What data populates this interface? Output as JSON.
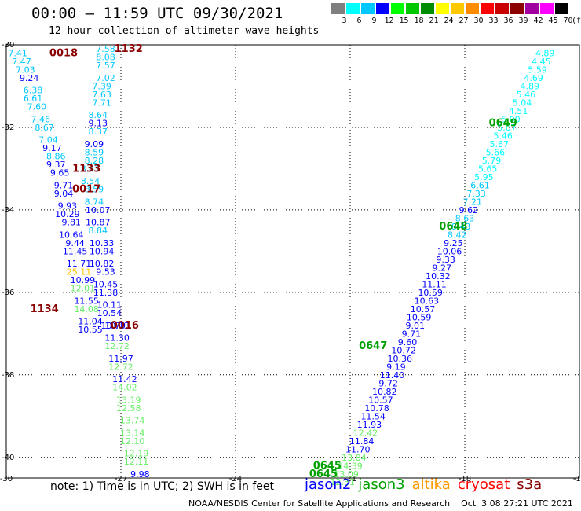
{
  "header": {
    "title": "00:00 – 11:59 UTC 09/30/2021",
    "subtitle": "12 hour collection of altimeter wave heights"
  },
  "color_scale": {
    "unit": "(ft)",
    "steps": [
      {
        "label": "3",
        "color": "#7f7f7f"
      },
      {
        "label": "6",
        "color": "#00ffff"
      },
      {
        "label": "9",
        "color": "#00c8ff"
      },
      {
        "label": "12",
        "color": "#0000ff"
      },
      {
        "label": "15",
        "color": "#00ff00"
      },
      {
        "label": "18",
        "color": "#00c800"
      },
      {
        "label": "21",
        "color": "#008c00"
      },
      {
        "label": "24",
        "color": "#ffff00"
      },
      {
        "label": "27",
        "color": "#ffc800"
      },
      {
        "label": "30",
        "color": "#ff8c00"
      },
      {
        "label": "33",
        "color": "#ff0000"
      },
      {
        "label": "36",
        "color": "#c80000"
      },
      {
        "label": "39",
        "color": "#8c0000"
      },
      {
        "label": "42",
        "color": "#a000a0"
      },
      {
        "label": "45",
        "color": "#ff00ff"
      },
      {
        "label": "70",
        "color": "#000000"
      }
    ]
  },
  "footer": {
    "note": "note: 1) Time is in UTC; 2) SWH is in feet",
    "satellites": [
      {
        "name": "jason2",
        "color": "#0000ff"
      },
      {
        "name": "jason3",
        "color": "#00a000"
      },
      {
        "name": "altika",
        "color": "#ff9900"
      },
      {
        "name": "cryosat",
        "color": "#ff0000"
      },
      {
        "name": "s3a",
        "color": "#8b0000"
      }
    ],
    "credit": "NOAA/NESDIS Center for Satellite Applications and Research    Oct  3 08:27:21 UTC 2021"
  },
  "chart_data": {
    "type": "scatter",
    "title": "00:00 – 11:59 UTC 09/30/2021",
    "xlabel": "",
    "ylabel": "",
    "xlim": [
      -30,
      -15
    ],
    "ylim": [
      -40.5,
      -30
    ],
    "x_ticks": [
      -30,
      -27,
      -24,
      -21,
      -18,
      -15
    ],
    "y_ticks": [
      -30,
      -32,
      -34,
      -36,
      -38,
      -40
    ],
    "grid": true,
    "legend": "bottom",
    "time_labels": [
      {
        "text": "0018",
        "x": -28.5,
        "y": -30.2,
        "color": "#8b0000"
      },
      {
        "text": "1132",
        "x": -26.8,
        "y": -30.1,
        "color": "#8b0000"
      },
      {
        "text": "1133",
        "x": -27.9,
        "y": -33.0,
        "color": "#8b0000"
      },
      {
        "text": "0017",
        "x": -27.9,
        "y": -33.5,
        "color": "#8b0000"
      },
      {
        "text": "1134",
        "x": -29.0,
        "y": -36.4,
        "color": "#8b0000"
      },
      {
        "text": "0016",
        "x": -26.9,
        "y": -36.8,
        "color": "#8b0000"
      },
      {
        "text": "0649",
        "x": -17.0,
        "y": -31.9,
        "color": "#00a000"
      },
      {
        "text": "0648",
        "x": -18.3,
        "y": -34.4,
        "color": "#00a000"
      },
      {
        "text": "0647",
        "x": -20.4,
        "y": -37.3,
        "color": "#00a000"
      },
      {
        "text": "0645",
        "x": -21.6,
        "y": -40.2,
        "color": "#00a000"
      },
      {
        "text": "0645",
        "x": -21.7,
        "y": -40.4,
        "color": "#00a000"
      }
    ],
    "series": [
      {
        "name": "cryosat 1132-1134",
        "points": [
          {
            "x": -29.7,
            "y": -30.2,
            "v": "7.41",
            "c": "#00c8ff"
          },
          {
            "x": -29.6,
            "y": -30.4,
            "v": "7.47",
            "c": "#00c8ff"
          },
          {
            "x": -29.5,
            "y": -30.6,
            "v": "7.03",
            "c": "#00c8ff"
          },
          {
            "x": -29.4,
            "y": -30.8,
            "v": "9.24",
            "c": "#0000ff"
          },
          {
            "x": -29.3,
            "y": -31.1,
            "v": "6.38",
            "c": "#00c8ff"
          },
          {
            "x": -29.3,
            "y": -31.3,
            "v": "6.61",
            "c": "#00c8ff"
          },
          {
            "x": -29.2,
            "y": -31.5,
            "v": "7.60",
            "c": "#00c8ff"
          },
          {
            "x": -29.1,
            "y": -31.8,
            "v": "7.46",
            "c": "#00c8ff"
          },
          {
            "x": -29.0,
            "y": -32.0,
            "v": "8.67",
            "c": "#00c8ff"
          },
          {
            "x": -28.9,
            "y": -32.3,
            "v": "7.04",
            "c": "#00c8ff"
          },
          {
            "x": -28.8,
            "y": -32.5,
            "v": "9.17",
            "c": "#0000ff"
          },
          {
            "x": -28.7,
            "y": -32.7,
            "v": "8.86",
            "c": "#00c8ff"
          },
          {
            "x": -28.7,
            "y": -32.9,
            "v": "9.37",
            "c": "#0000ff"
          },
          {
            "x": -28.6,
            "y": -33.1,
            "v": "9.65",
            "c": "#0000ff"
          },
          {
            "x": -28.5,
            "y": -33.4,
            "v": "9.71",
            "c": "#0000ff"
          },
          {
            "x": -28.5,
            "y": -33.6,
            "v": "9.04",
            "c": "#0000ff"
          },
          {
            "x": -28.4,
            "y": -33.9,
            "v": "9.93",
            "c": "#0000ff"
          },
          {
            "x": -28.4,
            "y": -34.1,
            "v": "10.29",
            "c": "#0000ff"
          },
          {
            "x": -28.3,
            "y": -34.3,
            "v": "9.81",
            "c": "#0000ff"
          },
          {
            "x": -28.3,
            "y": -34.6,
            "v": "10.64",
            "c": "#0000ff"
          },
          {
            "x": -28.2,
            "y": -34.8,
            "v": "9.44",
            "c": "#0000ff"
          },
          {
            "x": -28.2,
            "y": -35.0,
            "v": "11.45",
            "c": "#0000ff"
          },
          {
            "x": -28.1,
            "y": -35.3,
            "v": "11.71",
            "c": "#0000ff"
          },
          {
            "x": -28.1,
            "y": -35.5,
            "v": "25.11",
            "c": "#ffc800"
          },
          {
            "x": -28.0,
            "y": -35.7,
            "v": "10.99",
            "c": "#0000ff"
          },
          {
            "x": -28.0,
            "y": -35.9,
            "v": "12.01",
            "c": "#66ee66"
          },
          {
            "x": -27.9,
            "y": -36.2,
            "v": "11.55",
            "c": "#0000ff"
          },
          {
            "x": -27.9,
            "y": -36.4,
            "v": "14.08",
            "c": "#66ee66"
          },
          {
            "x": -27.8,
            "y": -36.7,
            "v": "11.04",
            "c": "#0000ff"
          },
          {
            "x": -27.8,
            "y": -36.9,
            "v": "10.55",
            "c": "#0000ff"
          }
        ]
      },
      {
        "name": "cryosat 0016-0018",
        "points": [
          {
            "x": -27.4,
            "y": -30.1,
            "v": "7.58",
            "c": "#00c8ff"
          },
          {
            "x": -27.4,
            "y": -30.3,
            "v": "8.08",
            "c": "#00c8ff"
          },
          {
            "x": -27.4,
            "y": -30.5,
            "v": "7.57",
            "c": "#00c8ff"
          },
          {
            "x": -27.4,
            "y": -30.8,
            "v": "7.02",
            "c": "#00c8ff"
          },
          {
            "x": -27.5,
            "y": -31.0,
            "v": "7.39",
            "c": "#00c8ff"
          },
          {
            "x": -27.5,
            "y": -31.2,
            "v": "7.63",
            "c": "#00c8ff"
          },
          {
            "x": -27.5,
            "y": -31.4,
            "v": "7.71",
            "c": "#00c8ff"
          },
          {
            "x": -27.6,
            "y": -31.7,
            "v": "8.64",
            "c": "#00c8ff"
          },
          {
            "x": -27.6,
            "y": -31.9,
            "v": "9.13",
            "c": "#0000ff"
          },
          {
            "x": -27.6,
            "y": -32.1,
            "v": "8.37",
            "c": "#00c8ff"
          },
          {
            "x": -27.7,
            "y": -32.4,
            "v": "9.09",
            "c": "#0000ff"
          },
          {
            "x": -27.7,
            "y": -32.6,
            "v": "8.59",
            "c": "#00c8ff"
          },
          {
            "x": -27.7,
            "y": -32.8,
            "v": "8.28",
            "c": "#00c8ff"
          },
          {
            "x": -27.8,
            "y": -33.0,
            "v": "8.47",
            "c": "#00c8ff"
          },
          {
            "x": -27.8,
            "y": -33.3,
            "v": "8.54",
            "c": "#00c8ff"
          },
          {
            "x": -27.7,
            "y": -33.5,
            "v": "8.59",
            "c": "#00c8ff"
          },
          {
            "x": -27.7,
            "y": -33.8,
            "v": "8.74",
            "c": "#00c8ff"
          },
          {
            "x": -27.6,
            "y": -34.0,
            "v": "10.07",
            "c": "#0000ff"
          },
          {
            "x": -27.6,
            "y": -34.3,
            "v": "10.87",
            "c": "#0000ff"
          },
          {
            "x": -27.6,
            "y": -34.5,
            "v": "8.84",
            "c": "#00c8ff"
          },
          {
            "x": -27.5,
            "y": -34.8,
            "v": "10.33",
            "c": "#0000ff"
          },
          {
            "x": -27.5,
            "y": -35.0,
            "v": "10.94",
            "c": "#0000ff"
          },
          {
            "x": -27.5,
            "y": -35.3,
            "v": "10.82",
            "c": "#0000ff"
          },
          {
            "x": -27.4,
            "y": -35.5,
            "v": "9.53",
            "c": "#0000ff"
          },
          {
            "x": -27.4,
            "y": -35.8,
            "v": "10.45",
            "c": "#0000ff"
          },
          {
            "x": -27.4,
            "y": -36.0,
            "v": "11.38",
            "c": "#0000ff"
          },
          {
            "x": -27.3,
            "y": -36.3,
            "v": "10.11",
            "c": "#0000ff"
          },
          {
            "x": -27.3,
            "y": -36.5,
            "v": "10.54",
            "c": "#0000ff"
          },
          {
            "x": -27.2,
            "y": -36.8,
            "v": "10.79",
            "c": "#0000ff"
          },
          {
            "x": -27.1,
            "y": -36.8,
            "v": "10.73",
            "c": "#0000ff"
          },
          {
            "x": -27.1,
            "y": -37.1,
            "v": "11.30",
            "c": "#0000ff"
          },
          {
            "x": -27.1,
            "y": -37.3,
            "v": "12.72",
            "c": "#66ee66"
          },
          {
            "x": -27.0,
            "y": -37.6,
            "v": "11.97",
            "c": "#0000ff"
          },
          {
            "x": -27.0,
            "y": -37.8,
            "v": "12.72",
            "c": "#66ee66"
          },
          {
            "x": -26.9,
            "y": -38.1,
            "v": "11.42",
            "c": "#0000ff"
          },
          {
            "x": -26.9,
            "y": -38.3,
            "v": "14.02",
            "c": "#66ee66"
          },
          {
            "x": -26.8,
            "y": -38.6,
            "v": "13.19",
            "c": "#66ee66"
          },
          {
            "x": -26.8,
            "y": -38.8,
            "v": "12.58",
            "c": "#66ee66"
          },
          {
            "x": -26.7,
            "y": -39.1,
            "v": "13.74",
            "c": "#66ee66"
          },
          {
            "x": -26.7,
            "y": -39.4,
            "v": "13.14",
            "c": "#66ee66"
          },
          {
            "x": -26.7,
            "y": -39.6,
            "v": "12.10",
            "c": "#66ee66"
          },
          {
            "x": -26.6,
            "y": -39.9,
            "v": "12.19",
            "c": "#66ee66"
          },
          {
            "x": -26.6,
            "y": -40.1,
            "v": "12.11",
            "c": "#66ee66"
          },
          {
            "x": -26.5,
            "y": -40.4,
            "v": "9.98",
            "c": "#0000ff"
          }
        ]
      },
      {
        "name": "jason3 0645-0649",
        "points": [
          {
            "x": -15.9,
            "y": -30.2,
            "v": "4.89",
            "c": "#00ffff"
          },
          {
            "x": -16.0,
            "y": -30.4,
            "v": "4.45",
            "c": "#00ffff"
          },
          {
            "x": -16.1,
            "y": -30.6,
            "v": "5.59",
            "c": "#00ffff"
          },
          {
            "x": -16.2,
            "y": -30.8,
            "v": "4.69",
            "c": "#00ffff"
          },
          {
            "x": -16.3,
            "y": -31.0,
            "v": "4.89",
            "c": "#00ffff"
          },
          {
            "x": -16.4,
            "y": -31.2,
            "v": "5.46",
            "c": "#00ffff"
          },
          {
            "x": -16.5,
            "y": -31.4,
            "v": "5.04",
            "c": "#00ffff"
          },
          {
            "x": -16.6,
            "y": -31.6,
            "v": "4.51",
            "c": "#00ffff"
          },
          {
            "x": -16.8,
            "y": -31.8,
            "v": "5.00",
            "c": "#00ffff"
          },
          {
            "x": -16.9,
            "y": -32.0,
            "v": "5.07",
            "c": "#00ffff"
          },
          {
            "x": -17.0,
            "y": -32.2,
            "v": "5.46",
            "c": "#00ffff"
          },
          {
            "x": -17.1,
            "y": -32.4,
            "v": "5.67",
            "c": "#00ffff"
          },
          {
            "x": -17.2,
            "y": -32.6,
            "v": "5.66",
            "c": "#00ffff"
          },
          {
            "x": -17.3,
            "y": -32.8,
            "v": "5.79",
            "c": "#00ffff"
          },
          {
            "x": -17.4,
            "y": -33.0,
            "v": "5.65",
            "c": "#00ffff"
          },
          {
            "x": -17.5,
            "y": -33.2,
            "v": "5.95",
            "c": "#00ffff"
          },
          {
            "x": -17.6,
            "y": -33.4,
            "v": "6.61",
            "c": "#00c8ff"
          },
          {
            "x": -17.7,
            "y": -33.6,
            "v": "7.33",
            "c": "#00c8ff"
          },
          {
            "x": -17.8,
            "y": -33.8,
            "v": "7.21",
            "c": "#00c8ff"
          },
          {
            "x": -17.9,
            "y": -34.0,
            "v": "9.62",
            "c": "#0000ff"
          },
          {
            "x": -18.0,
            "y": -34.2,
            "v": "8.63",
            "c": "#00c8ff"
          },
          {
            "x": -18.1,
            "y": -34.4,
            "v": "8.43",
            "c": "#00c8ff"
          },
          {
            "x": -18.2,
            "y": -34.6,
            "v": "8.42",
            "c": "#00c8ff"
          },
          {
            "x": -18.3,
            "y": -34.8,
            "v": "9.25",
            "c": "#0000ff"
          },
          {
            "x": -18.4,
            "y": -35.0,
            "v": "10.06",
            "c": "#0000ff"
          },
          {
            "x": -18.5,
            "y": -35.2,
            "v": "9.33",
            "c": "#0000ff"
          },
          {
            "x": -18.6,
            "y": -35.4,
            "v": "9.27",
            "c": "#0000ff"
          },
          {
            "x": -18.7,
            "y": -35.6,
            "v": "10.32",
            "c": "#0000ff"
          },
          {
            "x": -18.8,
            "y": -35.8,
            "v": "11.11",
            "c": "#0000ff"
          },
          {
            "x": -18.9,
            "y": -36.0,
            "v": "10.59",
            "c": "#0000ff"
          },
          {
            "x": -19.0,
            "y": -36.2,
            "v": "10.63",
            "c": "#0000ff"
          },
          {
            "x": -19.1,
            "y": -36.4,
            "v": "10.57",
            "c": "#0000ff"
          },
          {
            "x": -19.2,
            "y": -36.6,
            "v": "10.59",
            "c": "#0000ff"
          },
          {
            "x": -19.3,
            "y": -36.8,
            "v": "9.01",
            "c": "#0000ff"
          },
          {
            "x": -19.4,
            "y": -37.0,
            "v": "9.71",
            "c": "#0000ff"
          },
          {
            "x": -19.5,
            "y": -37.2,
            "v": "9.60",
            "c": "#0000ff"
          },
          {
            "x": -19.6,
            "y": -37.4,
            "v": "10.72",
            "c": "#0000ff"
          },
          {
            "x": -19.7,
            "y": -37.6,
            "v": "10.36",
            "c": "#0000ff"
          },
          {
            "x": -19.8,
            "y": -37.8,
            "v": "9.19",
            "c": "#0000ff"
          },
          {
            "x": -19.9,
            "y": -38.0,
            "v": "11.40",
            "c": "#0000ff"
          },
          {
            "x": -20.0,
            "y": -38.2,
            "v": "9.72",
            "c": "#0000ff"
          },
          {
            "x": -20.1,
            "y": -38.4,
            "v": "10.82",
            "c": "#0000ff"
          },
          {
            "x": -20.2,
            "y": -38.6,
            "v": "10.57",
            "c": "#0000ff"
          },
          {
            "x": -20.3,
            "y": -38.8,
            "v": "10.78",
            "c": "#0000ff"
          },
          {
            "x": -20.4,
            "y": -39.0,
            "v": "11.54",
            "c": "#0000ff"
          },
          {
            "x": -20.5,
            "y": -39.2,
            "v": "11.93",
            "c": "#0000ff"
          },
          {
            "x": -20.6,
            "y": -39.4,
            "v": "12.42",
            "c": "#66ee66"
          },
          {
            "x": -20.7,
            "y": -39.6,
            "v": "11.84",
            "c": "#0000ff"
          },
          {
            "x": -20.8,
            "y": -39.8,
            "v": "11.70",
            "c": "#0000ff"
          },
          {
            "x": -20.9,
            "y": -40.0,
            "v": "13.84",
            "c": "#66ee66"
          },
          {
            "x": -21.0,
            "y": -40.2,
            "v": "14.39",
            "c": "#66ee66"
          },
          {
            "x": -21.1,
            "y": -40.4,
            "v": "13.09",
            "c": "#66ee66"
          },
          {
            "x": -21.2,
            "y": -40.6,
            "v": "12.31",
            "c": "#66ee66"
          }
        ]
      }
    ]
  }
}
